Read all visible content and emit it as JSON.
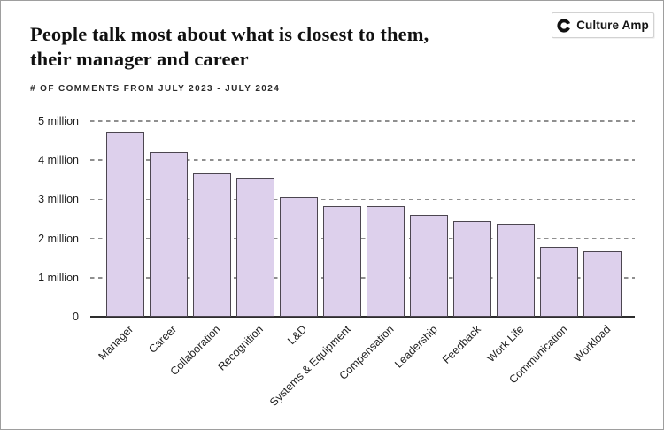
{
  "header": {
    "title_line1": "People talk most about what is closest to them,",
    "title_line2": "their manager and career",
    "subtitle": "# OF COMMENTS FROM JULY 2023 - JULY 2024"
  },
  "logo": {
    "brand": "Culture Amp",
    "icon": "culture-amp-c-mark"
  },
  "chart_data": {
    "type": "bar",
    "title": "People talk most about what is closest to them, their manager and career",
    "subtitle": "# of comments from July 2023 - July 2024",
    "categories": [
      "Manager",
      "Career",
      "Collaboration",
      "Recognition",
      "L&D",
      "Systems & Equipment",
      "Compensation",
      "Leadership",
      "Feedback",
      "Work Life",
      "Communication",
      "Workload"
    ],
    "values_millions": [
      4.72,
      4.2,
      3.67,
      3.55,
      3.05,
      2.83,
      2.82,
      2.6,
      2.45,
      2.37,
      1.79,
      1.67
    ],
    "yticks": [
      {
        "value": 0,
        "label": "0"
      },
      {
        "value": 1,
        "label": "1 million"
      },
      {
        "value": 2,
        "label": "2 million"
      },
      {
        "value": 3,
        "label": "3 million"
      },
      {
        "value": 4,
        "label": "4 million"
      },
      {
        "value": 5,
        "label": "5 million"
      }
    ],
    "ylim_millions": [
      0,
      5
    ],
    "xlabel": "",
    "ylabel": "",
    "grid": "horizontal-dashed",
    "legend": "none",
    "bar_fill": "#ddd0ec",
    "bar_border": "#4c4650",
    "gridline_color": "#8f8f8f",
    "axis_color": "#2d2d2d"
  }
}
